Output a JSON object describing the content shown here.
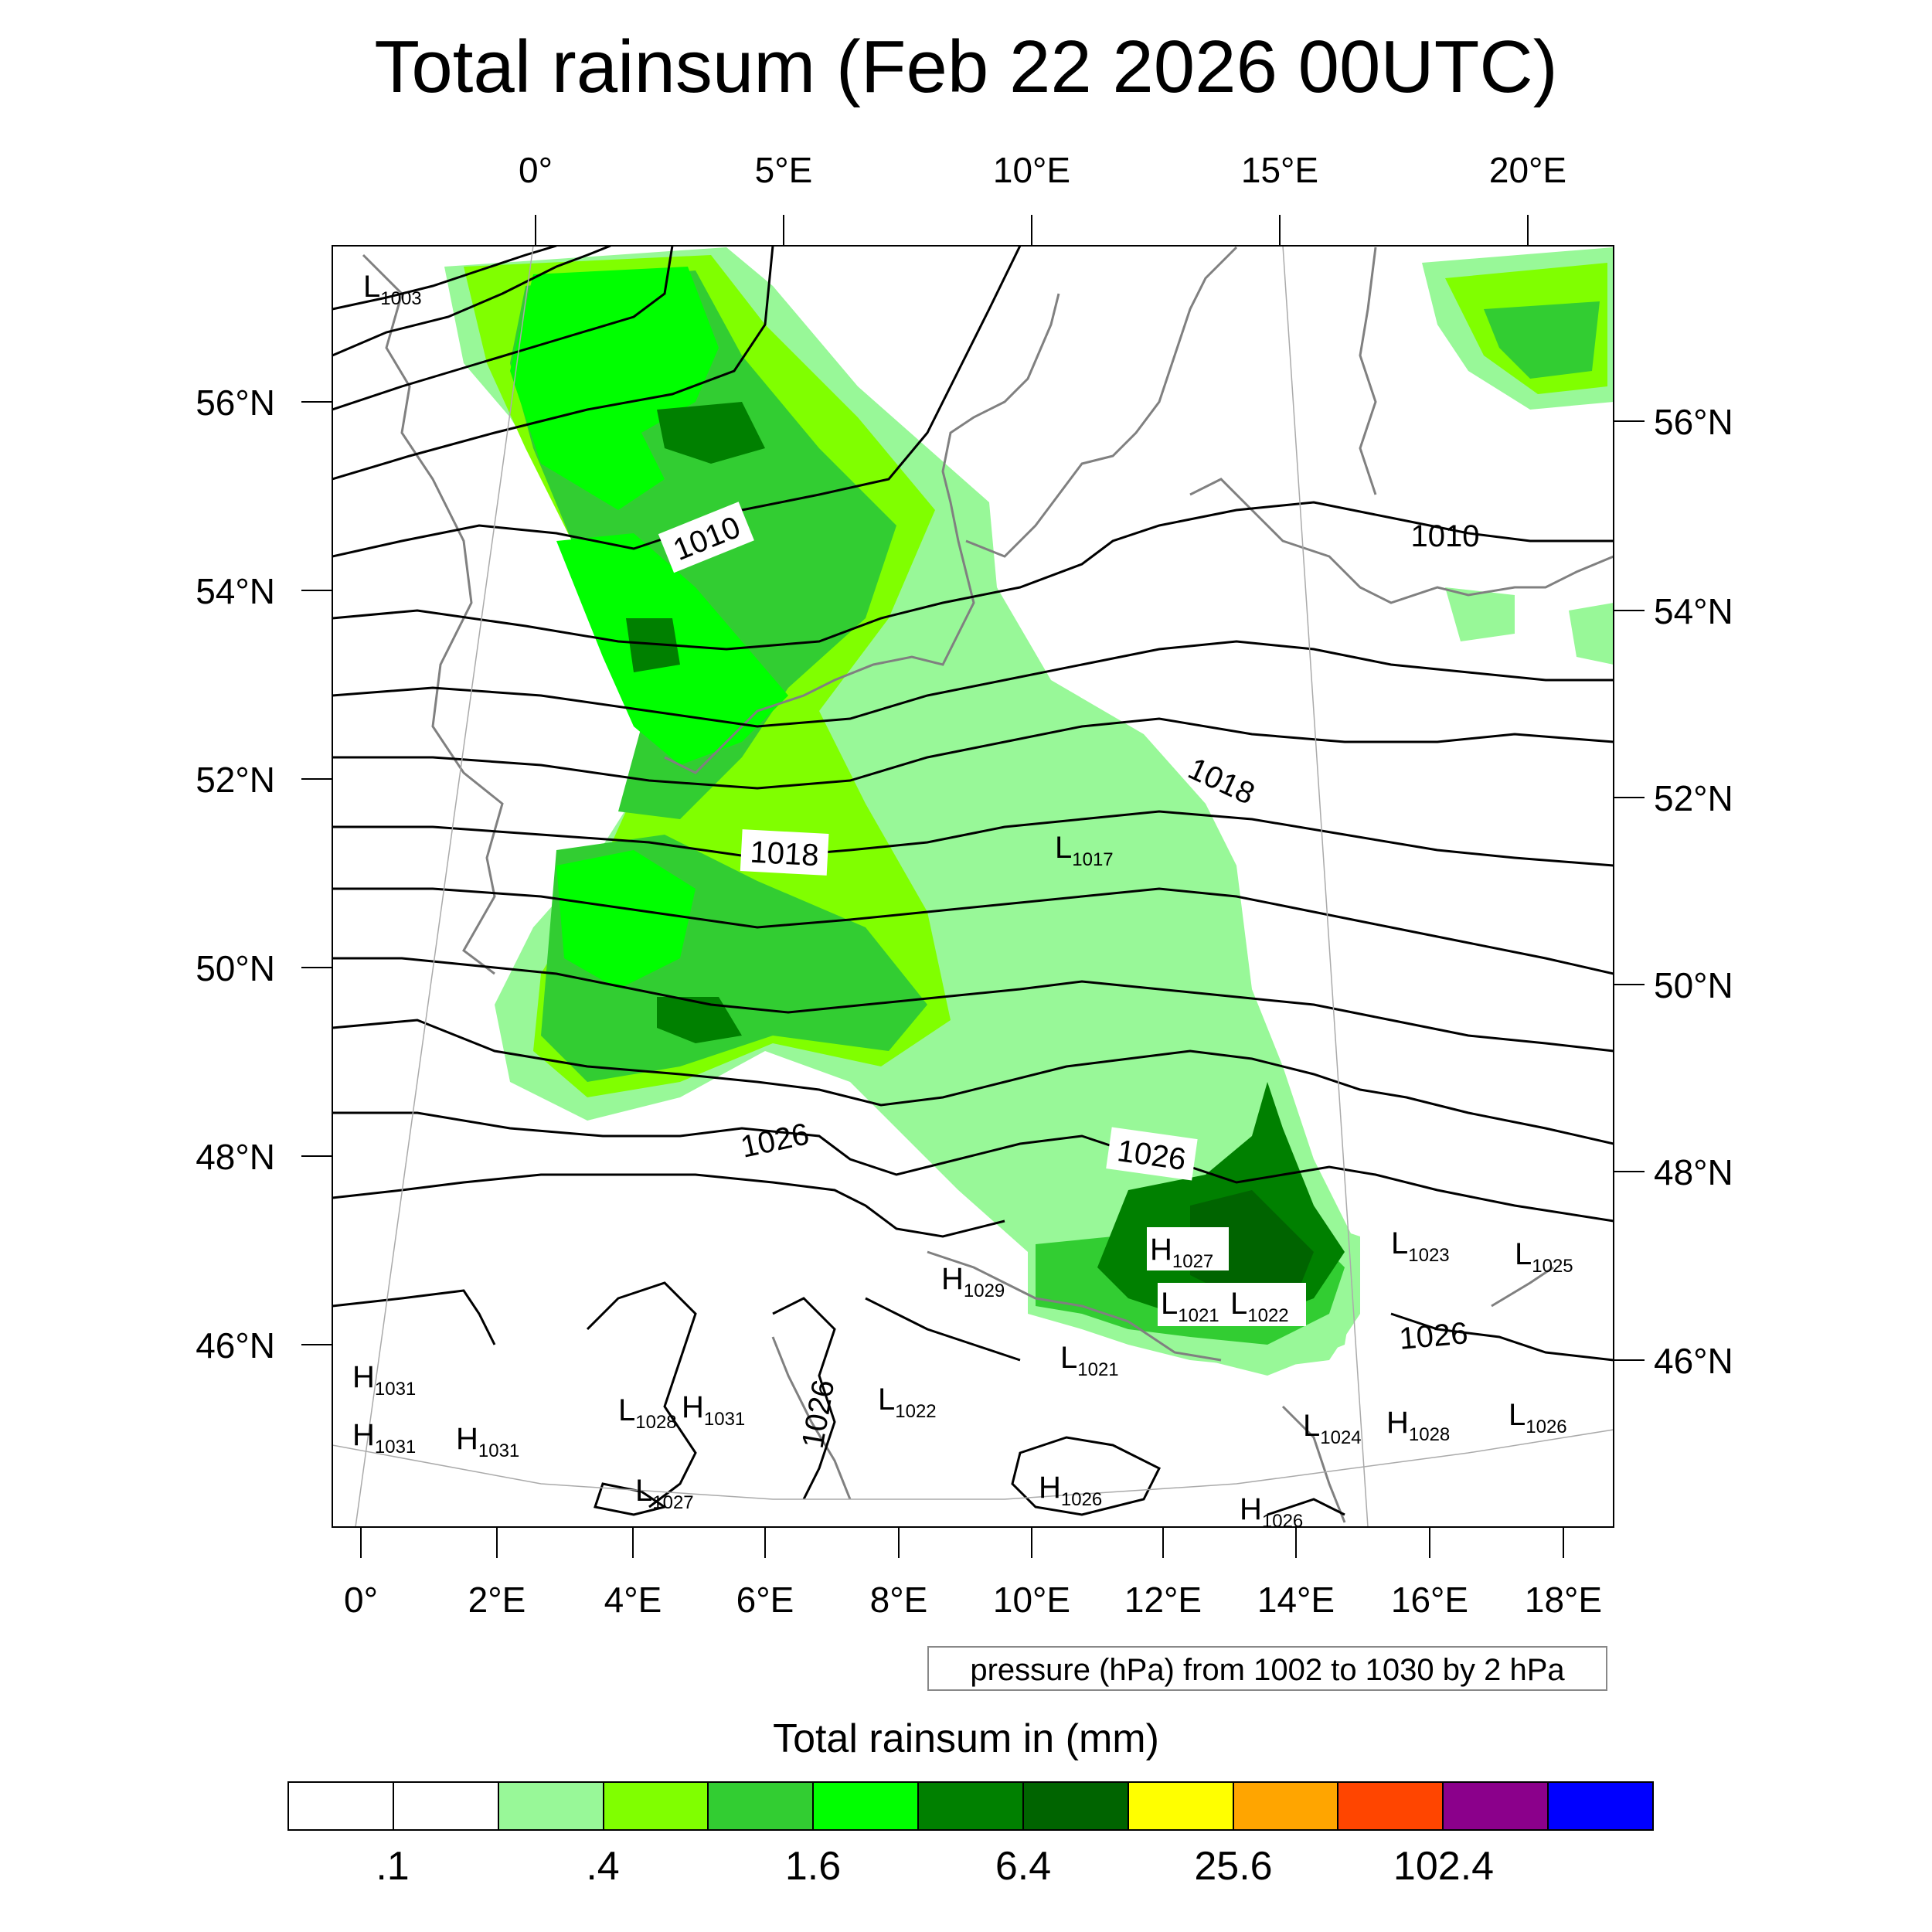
{
  "title": "Total rainsum (Feb 22 2026 00UTC)",
  "map": {
    "top_lon_labels": [
      "0°",
      "5°E",
      "10°E",
      "15°E",
      "20°E"
    ],
    "bottom_lon_labels": [
      "0°",
      "2°E",
      "4°E",
      "6°E",
      "8°E",
      "10°E",
      "12°E",
      "14°E",
      "16°E",
      "18°E"
    ],
    "left_lat_labels": [
      "56°N",
      "54°N",
      "52°N",
      "50°N",
      "48°N",
      "46°N"
    ],
    "right_lat_labels": [
      "56°N",
      "54°N",
      "52°N",
      "50°N",
      "48°N",
      "46°N"
    ],
    "contour_labels": [
      "1010",
      "1010",
      "1018",
      "1018",
      "1026",
      "1026",
      "1026",
      "1026"
    ],
    "pressure_centers": [
      {
        "type": "L",
        "value": "1003"
      },
      {
        "type": "L",
        "value": "1017"
      },
      {
        "type": "H",
        "value": "1027"
      },
      {
        "type": "H",
        "value": "1029"
      },
      {
        "type": "L",
        "value": "1021"
      },
      {
        "type": "L",
        "value": "1022"
      },
      {
        "type": "L",
        "value": "1021"
      },
      {
        "type": "L",
        "value": "1023"
      },
      {
        "type": "L",
        "value": "1025"
      },
      {
        "type": "H",
        "value": "1031"
      },
      {
        "type": "H",
        "value": "1031"
      },
      {
        "type": "H",
        "value": "1031"
      },
      {
        "type": "L",
        "value": "1028"
      },
      {
        "type": "H",
        "value": "1031"
      },
      {
        "type": "L",
        "value": "1022"
      },
      {
        "type": "L",
        "value": "1027"
      },
      {
        "type": "L",
        "value": "1024"
      },
      {
        "type": "H",
        "value": "1028"
      },
      {
        "type": "L",
        "value": "1026"
      },
      {
        "type": "H",
        "value": "1026"
      },
      {
        "type": "H",
        "value": "1026"
      }
    ],
    "colors": {
      "coast": "#808080",
      "contour": "#000000",
      "rain_0_4": "#98f898",
      "rain_0_8": "#80ff00",
      "rain_1_6": "#32cd32",
      "rain_3_2": "#00ff00",
      "rain_6_4": "#008000",
      "rain_12_8": "#006400"
    }
  },
  "info_box": "pressure (hPa) from 1002 to 1030 by 2 hPa",
  "labelbar": {
    "title": "Total rainsum in (mm)",
    "colors": [
      "#ffffff",
      "#ffffff",
      "#98f898",
      "#80ff00",
      "#32cd32",
      "#00ff00",
      "#008000",
      "#006400",
      "#ffff00",
      "#ffa500",
      "#ff4500",
      "#8b008b",
      "#0000ff"
    ],
    "tick_labels": [
      ".1",
      ".4",
      "1.6",
      "6.4",
      "25.6",
      "102.4"
    ]
  }
}
